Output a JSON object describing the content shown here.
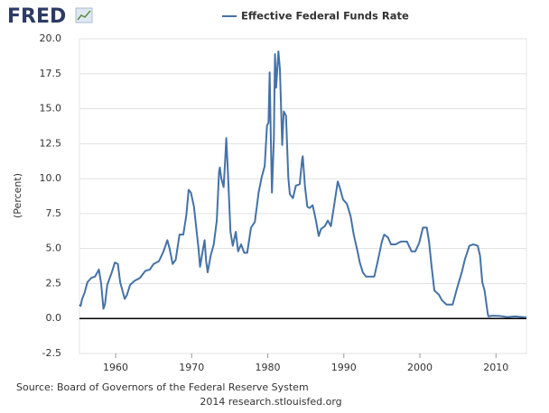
{
  "logo": "FRED",
  "chart_data": {
    "type": "line",
    "y_label": "(Percent)",
    "source": "Source: Board of Governors of the Federal Reserve System",
    "credit": "2014 research.stlouisfed.org",
    "xlim": [
      1955.25,
      2014.0
    ],
    "xticks": [
      1960,
      1970,
      1980,
      1990,
      2000,
      2010
    ],
    "ylim": [
      -2.5,
      20.0
    ],
    "yticks": [
      {
        "value": -2.5,
        "label": "-2.5"
      },
      {
        "value": 0,
        "label": "0.0"
      },
      {
        "value": 2.5,
        "label": "2.5"
      },
      {
        "value": 5,
        "label": "5.0"
      },
      {
        "value": 7.5,
        "label": "7.5"
      },
      {
        "value": 10,
        "label": "10.0"
      },
      {
        "value": 12.5,
        "label": "12.5"
      },
      {
        "value": 15,
        "label": "15.0"
      },
      {
        "value": 17.5,
        "label": "17.5"
      },
      {
        "value": 20,
        "label": "20.0"
      }
    ],
    "grid": true,
    "x": [
      1955.25,
      1955.4,
      1955.6,
      1955.9,
      1956.3,
      1956.8,
      1957.3,
      1957.8,
      1958.1,
      1958.4,
      1958.6,
      1958.9,
      1959.5,
      1959.9,
      1960.3,
      1960.6,
      1960.9,
      1961.2,
      1961.5,
      1961.9,
      1962.5,
      1963.2,
      1963.9,
      1964.5,
      1965.0,
      1965.7,
      1966.3,
      1966.8,
      1967.1,
      1967.5,
      1967.9,
      1968.4,
      1968.9,
      1969.3,
      1969.6,
      1969.9,
      1970.3,
      1970.6,
      1970.9,
      1971.1,
      1971.5,
      1971.7,
      1971.9,
      1972.1,
      1972.5,
      1972.9,
      1973.3,
      1973.6,
      1973.7,
      1973.9,
      1974.2,
      1974.4,
      1974.55,
      1974.8,
      1975.1,
      1975.4,
      1975.8,
      1976.1,
      1976.5,
      1976.9,
      1977.3,
      1977.8,
      1978.3,
      1978.8,
      1979.2,
      1979.6,
      1979.9,
      1980.1,
      1980.25,
      1980.4,
      1980.55,
      1980.8,
      1980.95,
      1981.1,
      1981.4,
      1981.6,
      1981.9,
      1982.1,
      1982.4,
      1982.7,
      1982.9,
      1983.3,
      1983.7,
      1984.2,
      1984.5,
      1984.6,
      1984.9,
      1985.2,
      1985.5,
      1985.9,
      1986.3,
      1986.7,
      1987.0,
      1987.5,
      1987.9,
      1988.3,
      1988.7,
      1989.2,
      1989.5,
      1989.9,
      1990.4,
      1990.9,
      1991.3,
      1991.8,
      1992.1,
      1992.5,
      1992.9,
      1993.5,
      1994.0,
      1994.5,
      1995.0,
      1995.3,
      1995.8,
      1996.2,
      1996.8,
      1997.5,
      1998.3,
      1998.9,
      1999.4,
      1999.9,
      2000.4,
      2000.9,
      2001.2,
      2001.5,
      2001.9,
      2002.5,
      2002.9,
      2003.5,
      2004.3,
      2004.9,
      2005.5,
      2005.9,
      2006.5,
      2007.0,
      2007.6,
      2007.9,
      2008.2,
      2008.5,
      2008.9,
      2009.0,
      2009.5,
      2010.5,
      2011.5,
      2012.5,
      2013.5,
      2014.0
    ],
    "series": [
      {
        "name": "Effective Federal Funds Rate",
        "color": "#4572a7",
        "values": [
          1.0,
          0.9,
          1.4,
          1.8,
          2.6,
          2.9,
          3.0,
          3.5,
          2.5,
          0.7,
          1.0,
          2.4,
          3.3,
          4.0,
          3.9,
          2.6,
          2.0,
          1.4,
          1.7,
          2.4,
          2.7,
          2.9,
          3.4,
          3.5,
          3.9,
          4.1,
          4.8,
          5.6,
          5.0,
          3.9,
          4.2,
          6.0,
          6.0,
          7.4,
          9.2,
          9.0,
          8.0,
          6.5,
          5.0,
          3.7,
          5.0,
          5.6,
          4.1,
          3.3,
          4.5,
          5.3,
          7.0,
          10.5,
          10.8,
          10.0,
          9.4,
          11.3,
          12.9,
          10.0,
          6.2,
          5.2,
          6.2,
          4.8,
          5.3,
          4.7,
          4.7,
          6.5,
          6.9,
          9.0,
          10.1,
          10.9,
          13.8,
          14.0,
          17.6,
          13.0,
          9.0,
          12.8,
          18.9,
          16.5,
          19.1,
          17.8,
          12.4,
          14.8,
          14.5,
          10.1,
          8.9,
          8.6,
          9.5,
          9.6,
          11.3,
          11.6,
          9.4,
          8.0,
          7.9,
          8.1,
          7.1,
          5.9,
          6.4,
          6.6,
          7.0,
          6.6,
          8.0,
          9.8,
          9.3,
          8.5,
          8.2,
          7.3,
          6.0,
          4.8,
          4.0,
          3.3,
          3.0,
          3.0,
          3.0,
          4.2,
          5.5,
          6.0,
          5.8,
          5.3,
          5.3,
          5.5,
          5.5,
          4.8,
          4.8,
          5.4,
          6.5,
          6.5,
          5.5,
          3.9,
          2.0,
          1.7,
          1.3,
          1.0,
          1.0,
          2.2,
          3.3,
          4.2,
          5.2,
          5.3,
          5.2,
          4.5,
          2.6,
          2.0,
          0.4,
          0.15,
          0.2,
          0.18,
          0.1,
          0.15,
          0.1,
          0.09
        ]
      }
    ]
  }
}
